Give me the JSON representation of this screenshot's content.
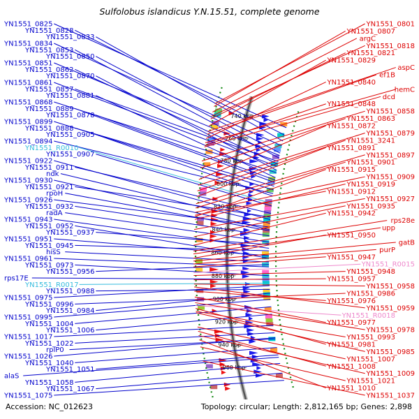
{
  "title": "Sulfolobus islandicus Y.N.15.51, complete genome",
  "footer": {
    "accession": "Accession: NC_012623",
    "summary": "Topology: circular; Length: 2,812,165 bp; Genes: 2,898"
  },
  "colors": {
    "left_label": "#0000cc",
    "right_label": "#dd0000",
    "rna_left": "#33bbdd",
    "rna_right": "#ee88cc",
    "forward_gene": "#1a1aee",
    "reverse_gene": "#ee1111",
    "tick": "#118811"
  },
  "kbp_ticks": [
    "740 kbp",
    "760 kbp",
    "780 kbp",
    "800 kbp",
    "820 kbp",
    "840 kbp",
    "860 kbp",
    "880 kbp",
    "900 kbp",
    "920 kbp",
    "940 kbp",
    "960 kbp"
  ],
  "left_labels": [
    {
      "text": "YN1551_0825",
      "kind": "gene",
      "target": 0.01
    },
    {
      "text": "YN1551_0828",
      "kind": "gene",
      "target": 0.022
    },
    {
      "text": "YN1551_0833",
      "kind": "gene",
      "target": 0.032
    },
    {
      "text": "YN1551_0834",
      "kind": "gene",
      "target": 0.04
    },
    {
      "text": "YN1551_0853",
      "kind": "gene",
      "target": 0.06
    },
    {
      "text": "YN1551_0850",
      "kind": "gene",
      "target": 0.052
    },
    {
      "text": "YN1551_0851",
      "kind": "gene",
      "target": 0.056
    },
    {
      "text": "YN1551_0862",
      "kind": "gene",
      "target": 0.07
    },
    {
      "text": "YN1551_0870",
      "kind": "gene",
      "target": 0.08
    },
    {
      "text": "YN1551_0861",
      "kind": "gene",
      "target": 0.074
    },
    {
      "text": "YN1551_0857",
      "kind": "gene",
      "target": 0.066
    },
    {
      "text": "YN1551_0881",
      "kind": "gene",
      "target": 0.092
    },
    {
      "text": "YN1551_0868",
      "kind": "gene",
      "target": 0.084
    },
    {
      "text": "YN1551_0889",
      "kind": "gene",
      "target": 0.1
    },
    {
      "text": "YN1551_0878",
      "kind": "gene",
      "target": 0.096
    },
    {
      "text": "YN1551_0899",
      "kind": "gene",
      "target": 0.112
    },
    {
      "text": "YN1551_0888",
      "kind": "gene",
      "target": 0.106
    },
    {
      "text": "YN1551_0905",
      "kind": "gene",
      "target": 0.122
    },
    {
      "text": "YN1551_0894",
      "kind": "gene",
      "target": 0.118
    },
    {
      "text": "YN1551_R0010",
      "kind": "rna",
      "target": 0.134
    },
    {
      "text": "YN1551_0907",
      "kind": "gene",
      "target": 0.138
    },
    {
      "text": "YN1551_0922",
      "kind": "gene",
      "target": 0.16
    },
    {
      "text": "YN1551_0911",
      "kind": "gene",
      "target": 0.15
    },
    {
      "text": "ndk",
      "kind": "gene",
      "target": 0.166
    },
    {
      "text": "YN1551_0930",
      "kind": "gene",
      "target": 0.176
    },
    {
      "text": "YN1551_0921",
      "kind": "gene",
      "target": 0.156
    },
    {
      "text": "rpoH",
      "kind": "gene",
      "target": 0.178
    },
    {
      "text": "YN1551_0926",
      "kind": "gene",
      "target": 0.172
    },
    {
      "text": "YN1551_0932",
      "kind": "gene",
      "target": 0.186
    },
    {
      "text": "radA",
      "kind": "gene",
      "target": 0.196
    },
    {
      "text": "YN1551_0943",
      "kind": "gene",
      "target": 0.206
    },
    {
      "text": "YN1551_0952",
      "kind": "gene",
      "target": 0.222
    },
    {
      "text": "YN1551_0937",
      "kind": "gene",
      "target": 0.2
    },
    {
      "text": "YN1551_0951",
      "kind": "gene",
      "target": 0.218
    },
    {
      "text": "YN1551_0945",
      "kind": "gene",
      "target": 0.21
    },
    {
      "text": "hisS",
      "kind": "gene",
      "target": 0.228
    },
    {
      "text": "YN1551_0961",
      "kind": "gene",
      "target": 0.236
    },
    {
      "text": "YN1551_0973",
      "kind": "gene",
      "target": 0.25
    },
    {
      "text": "YN1551_0956",
      "kind": "gene",
      "target": 0.232
    },
    {
      "text": "rps17E",
      "kind": "gene",
      "target": 0.256
    },
    {
      "text": "YN1551_R0017",
      "kind": "rna",
      "target": 0.262
    },
    {
      "text": "YN1551_0988",
      "kind": "gene",
      "target": 0.272
    },
    {
      "text": "YN1551_0975",
      "kind": "gene",
      "target": 0.266
    },
    {
      "text": "YN1551_0996",
      "kind": "gene",
      "target": 0.284
    },
    {
      "text": "YN1551_0984",
      "kind": "gene",
      "target": 0.278
    },
    {
      "text": "YN1551_0995",
      "kind": "gene",
      "target": 0.288
    },
    {
      "text": "YN1551_1004",
      "kind": "gene",
      "target": 0.3
    },
    {
      "text": "YN1551_1006",
      "kind": "gene",
      "target": 0.312
    },
    {
      "text": "YN1551_1017",
      "kind": "gene",
      "target": 0.33
    },
    {
      "text": "YN1551_1022",
      "kind": "gene",
      "target": 0.342
    },
    {
      "text": "rplP0",
      "kind": "gene",
      "target": 0.352
    },
    {
      "text": "YN1551_1026",
      "kind": "gene",
      "target": 0.35
    },
    {
      "text": "YN1551_1040",
      "kind": "gene",
      "target": 0.366
    },
    {
      "text": "YN1551_1051",
      "kind": "gene",
      "target": 0.378
    },
    {
      "text": "alaS",
      "kind": "gene",
      "target": 0.382
    },
    {
      "text": "YN1551_1058",
      "kind": "gene",
      "target": 0.392
    },
    {
      "text": "YN1551_1067",
      "kind": "gene",
      "target": 0.408
    },
    {
      "text": "YN1551_1075",
      "kind": "gene",
      "target": 0.42
    }
  ],
  "right_labels": [
    {
      "text": "YN1551_0801",
      "kind": "gene",
      "target": 0.004
    },
    {
      "text": "YN1551_0807",
      "kind": "gene",
      "target": 0.008
    },
    {
      "text": "argC",
      "kind": "gene",
      "target": 0.016
    },
    {
      "text": "YN1551_0818",
      "kind": "gene",
      "target": 0.022
    },
    {
      "text": "YN1551_0821",
      "kind": "gene",
      "target": 0.026
    },
    {
      "text": "YN1551_0829",
      "kind": "gene",
      "target": 0.036
    },
    {
      "text": "aspC",
      "kind": "gene",
      "target": 0.044
    },
    {
      "text": "ef1B",
      "kind": "gene",
      "target": 0.048
    },
    {
      "text": "YN1551_0840",
      "kind": "gene",
      "target": 0.054
    },
    {
      "text": "hemC",
      "kind": "gene",
      "target": 0.06
    },
    {
      "text": "dcd",
      "kind": "gene",
      "target": 0.066
    },
    {
      "text": "YN1551_0848",
      "kind": "gene",
      "target": 0.064
    },
    {
      "text": "YN1551_0858",
      "kind": "gene",
      "target": 0.086
    },
    {
      "text": "YN1551_0863",
      "kind": "gene",
      "target": 0.096
    },
    {
      "text": "YN1551_0872",
      "kind": "gene",
      "target": 0.112
    },
    {
      "text": "YN1551_0879",
      "kind": "gene",
      "target": 0.12
    },
    {
      "text": "YN1551_3241",
      "kind": "gene",
      "target": 0.128
    },
    {
      "text": "YN1551_0891",
      "kind": "gene",
      "target": 0.136
    },
    {
      "text": "YN1551_0897",
      "kind": "gene",
      "target": 0.146
    },
    {
      "text": "YN1551_0901",
      "kind": "gene",
      "target": 0.152
    },
    {
      "text": "YN1551_0915",
      "kind": "gene",
      "target": 0.164
    },
    {
      "text": "YN1551_0909",
      "kind": "gene",
      "target": 0.158
    },
    {
      "text": "YN1551_0919",
      "kind": "gene",
      "target": 0.168
    },
    {
      "text": "YN1551_0912",
      "kind": "gene",
      "target": 0.162
    },
    {
      "text": "YN1551_0927",
      "kind": "gene",
      "target": 0.182
    },
    {
      "text": "YN1551_0935",
      "kind": "gene",
      "target": 0.192
    },
    {
      "text": "YN1551_0942",
      "kind": "gene",
      "target": 0.204
    },
    {
      "text": "rps28e",
      "kind": "gene",
      "target": 0.212
    },
    {
      "text": "upp",
      "kind": "gene",
      "target": 0.216
    },
    {
      "text": "YN1551_0950",
      "kind": "gene",
      "target": 0.222
    },
    {
      "text": "gatB",
      "kind": "gene",
      "target": 0.226
    },
    {
      "text": "purP",
      "kind": "gene",
      "target": 0.23
    },
    {
      "text": "YN1551_0947",
      "kind": "gene",
      "target": 0.234
    },
    {
      "text": "YN1551_R0015",
      "kind": "rna",
      "target": 0.242
    },
    {
      "text": "YN1551_0948",
      "kind": "gene",
      "target": 0.246
    },
    {
      "text": "YN1551_0957",
      "kind": "gene",
      "target": 0.252
    },
    {
      "text": "YN1551_0958",
      "kind": "gene",
      "target": 0.258
    },
    {
      "text": "YN1551_0986",
      "kind": "gene",
      "target": 0.28
    },
    {
      "text": "YN1551_0976",
      "kind": "gene",
      "target": 0.268
    },
    {
      "text": "YN1551_0959",
      "kind": "gene",
      "target": 0.262
    },
    {
      "text": "YN1551_R0018",
      "kind": "rna",
      "target": 0.288
    },
    {
      "text": "YN1551_0977",
      "kind": "gene",
      "target": 0.276
    },
    {
      "text": "YN1551_0978",
      "kind": "gene",
      "target": 0.284
    },
    {
      "text": "YN1551_0993",
      "kind": "gene",
      "target": 0.296
    },
    {
      "text": "YN1551_0981",
      "kind": "gene",
      "target": 0.292
    },
    {
      "text": "YN1551_0985",
      "kind": "gene",
      "target": 0.298
    },
    {
      "text": "YN1551_1007",
      "kind": "gene",
      "target": 0.318
    },
    {
      "text": "YN1551_1008",
      "kind": "gene",
      "target": 0.324
    },
    {
      "text": "YN1551_1009",
      "kind": "gene",
      "target": 0.33
    },
    {
      "text": "YN1551_1021",
      "kind": "gene",
      "target": 0.346
    },
    {
      "text": "YN1551_1010",
      "kind": "gene",
      "target": 0.336
    },
    {
      "text": "YN1551_1037",
      "kind": "gene",
      "target": 0.366
    }
  ]
}
